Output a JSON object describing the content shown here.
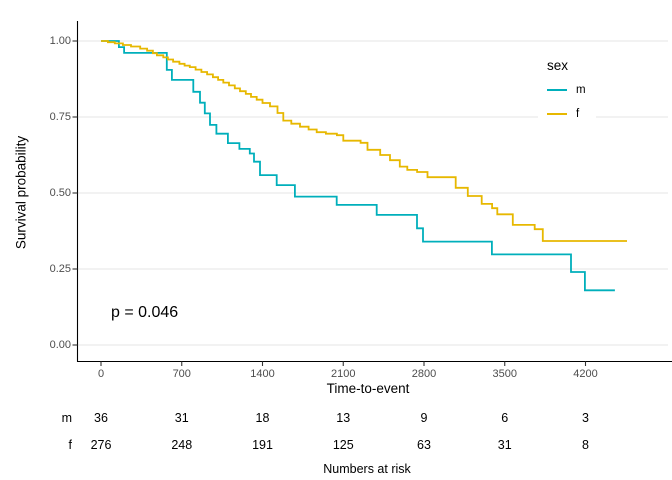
{
  "chart_data": {
    "type": "line",
    "subtype": "kaplan-meier-step",
    "title": "",
    "xlabel": "Time-to-event",
    "ylabel": "Survival probability",
    "xlim": [
      0,
      4900
    ],
    "ylim": [
      0,
      1
    ],
    "grid": "horizontal-major-only",
    "x_ticks": [
      0,
      700,
      1400,
      2100,
      2800,
      3500,
      4200
    ],
    "y_ticks": [
      {
        "value": 1.0,
        "label": "1.00"
      },
      {
        "value": 0.75,
        "label": "0.75"
      },
      {
        "value": 0.5,
        "label": "0.50"
      },
      {
        "value": 0.25,
        "label": "0.25"
      },
      {
        "value": 0.0,
        "label": "0.00"
      }
    ],
    "annotations": {
      "p_value": "p = 0.046"
    },
    "legend": {
      "title": "sex",
      "position": "inside-top-right",
      "entries": [
        {
          "label": "m",
          "color": "#00AFBB"
        },
        {
          "label": "f",
          "color": "#E7B800"
        }
      ]
    },
    "series": [
      {
        "name": "m",
        "color": "#00AFBB",
        "steps": [
          [
            0,
            1.0
          ],
          [
            155,
            0.98
          ],
          [
            200,
            0.961
          ],
          [
            570,
            0.905
          ],
          [
            615,
            0.872
          ],
          [
            800,
            0.833
          ],
          [
            858,
            0.797
          ],
          [
            900,
            0.762
          ],
          [
            945,
            0.724
          ],
          [
            1000,
            0.695
          ],
          [
            1100,
            0.664
          ],
          [
            1200,
            0.645
          ],
          [
            1290,
            0.63
          ],
          [
            1326,
            0.603
          ],
          [
            1378,
            0.559
          ],
          [
            1523,
            0.526
          ],
          [
            1681,
            0.488
          ],
          [
            2043,
            0.461
          ],
          [
            2390,
            0.428
          ],
          [
            2739,
            0.384
          ],
          [
            2791,
            0.34
          ],
          [
            3389,
            0.298
          ],
          [
            4074,
            0.24
          ],
          [
            4195,
            0.18
          ],
          [
            4455,
            0.18
          ]
        ]
      },
      {
        "name": "f",
        "color": "#E7B800",
        "steps": [
          [
            0,
            1.0
          ],
          [
            60,
            0.996
          ],
          [
            120,
            0.992
          ],
          [
            190,
            0.987
          ],
          [
            260,
            0.982
          ],
          [
            340,
            0.975
          ],
          [
            400,
            0.968
          ],
          [
            450,
            0.96
          ],
          [
            485,
            0.953
          ],
          [
            540,
            0.946
          ],
          [
            580,
            0.939
          ],
          [
            625,
            0.932
          ],
          [
            680,
            0.925
          ],
          [
            725,
            0.919
          ],
          [
            770,
            0.914
          ],
          [
            820,
            0.906
          ],
          [
            870,
            0.898
          ],
          [
            920,
            0.89
          ],
          [
            970,
            0.881
          ],
          [
            1015,
            0.872
          ],
          [
            1060,
            0.863
          ],
          [
            1110,
            0.854
          ],
          [
            1160,
            0.844
          ],
          [
            1205,
            0.835
          ],
          [
            1255,
            0.826
          ],
          [
            1300,
            0.816
          ],
          [
            1350,
            0.807
          ],
          [
            1400,
            0.796
          ],
          [
            1465,
            0.785
          ],
          [
            1530,
            0.763
          ],
          [
            1580,
            0.738
          ],
          [
            1650,
            0.728
          ],
          [
            1725,
            0.718
          ],
          [
            1800,
            0.709
          ],
          [
            1870,
            0.7
          ],
          [
            1950,
            0.695
          ],
          [
            2045,
            0.69
          ],
          [
            2100,
            0.672
          ],
          [
            2250,
            0.665
          ],
          [
            2310,
            0.642
          ],
          [
            2420,
            0.625
          ],
          [
            2505,
            0.608
          ],
          [
            2590,
            0.587
          ],
          [
            2655,
            0.576
          ],
          [
            2740,
            0.569
          ],
          [
            2830,
            0.552
          ],
          [
            3075,
            0.517
          ],
          [
            3180,
            0.49
          ],
          [
            3300,
            0.464
          ],
          [
            3390,
            0.45
          ],
          [
            3435,
            0.43
          ],
          [
            3570,
            0.395
          ],
          [
            3760,
            0.381
          ],
          [
            3830,
            0.342
          ],
          [
            4560,
            0.342
          ]
        ]
      }
    ],
    "risk_table": {
      "caption": "Numbers at risk",
      "time_points": [
        0,
        700,
        1400,
        2100,
        2800,
        3500,
        4200
      ],
      "rows": [
        {
          "label": "m",
          "values": [
            36,
            31,
            18,
            13,
            9,
            6,
            3
          ]
        },
        {
          "label": "f",
          "values": [
            276,
            248,
            191,
            125,
            63,
            31,
            8
          ]
        }
      ]
    },
    "colors": {
      "axis": "#000000",
      "tick_text": "#4d4d4d",
      "gridline": "#ebebeb"
    }
  }
}
